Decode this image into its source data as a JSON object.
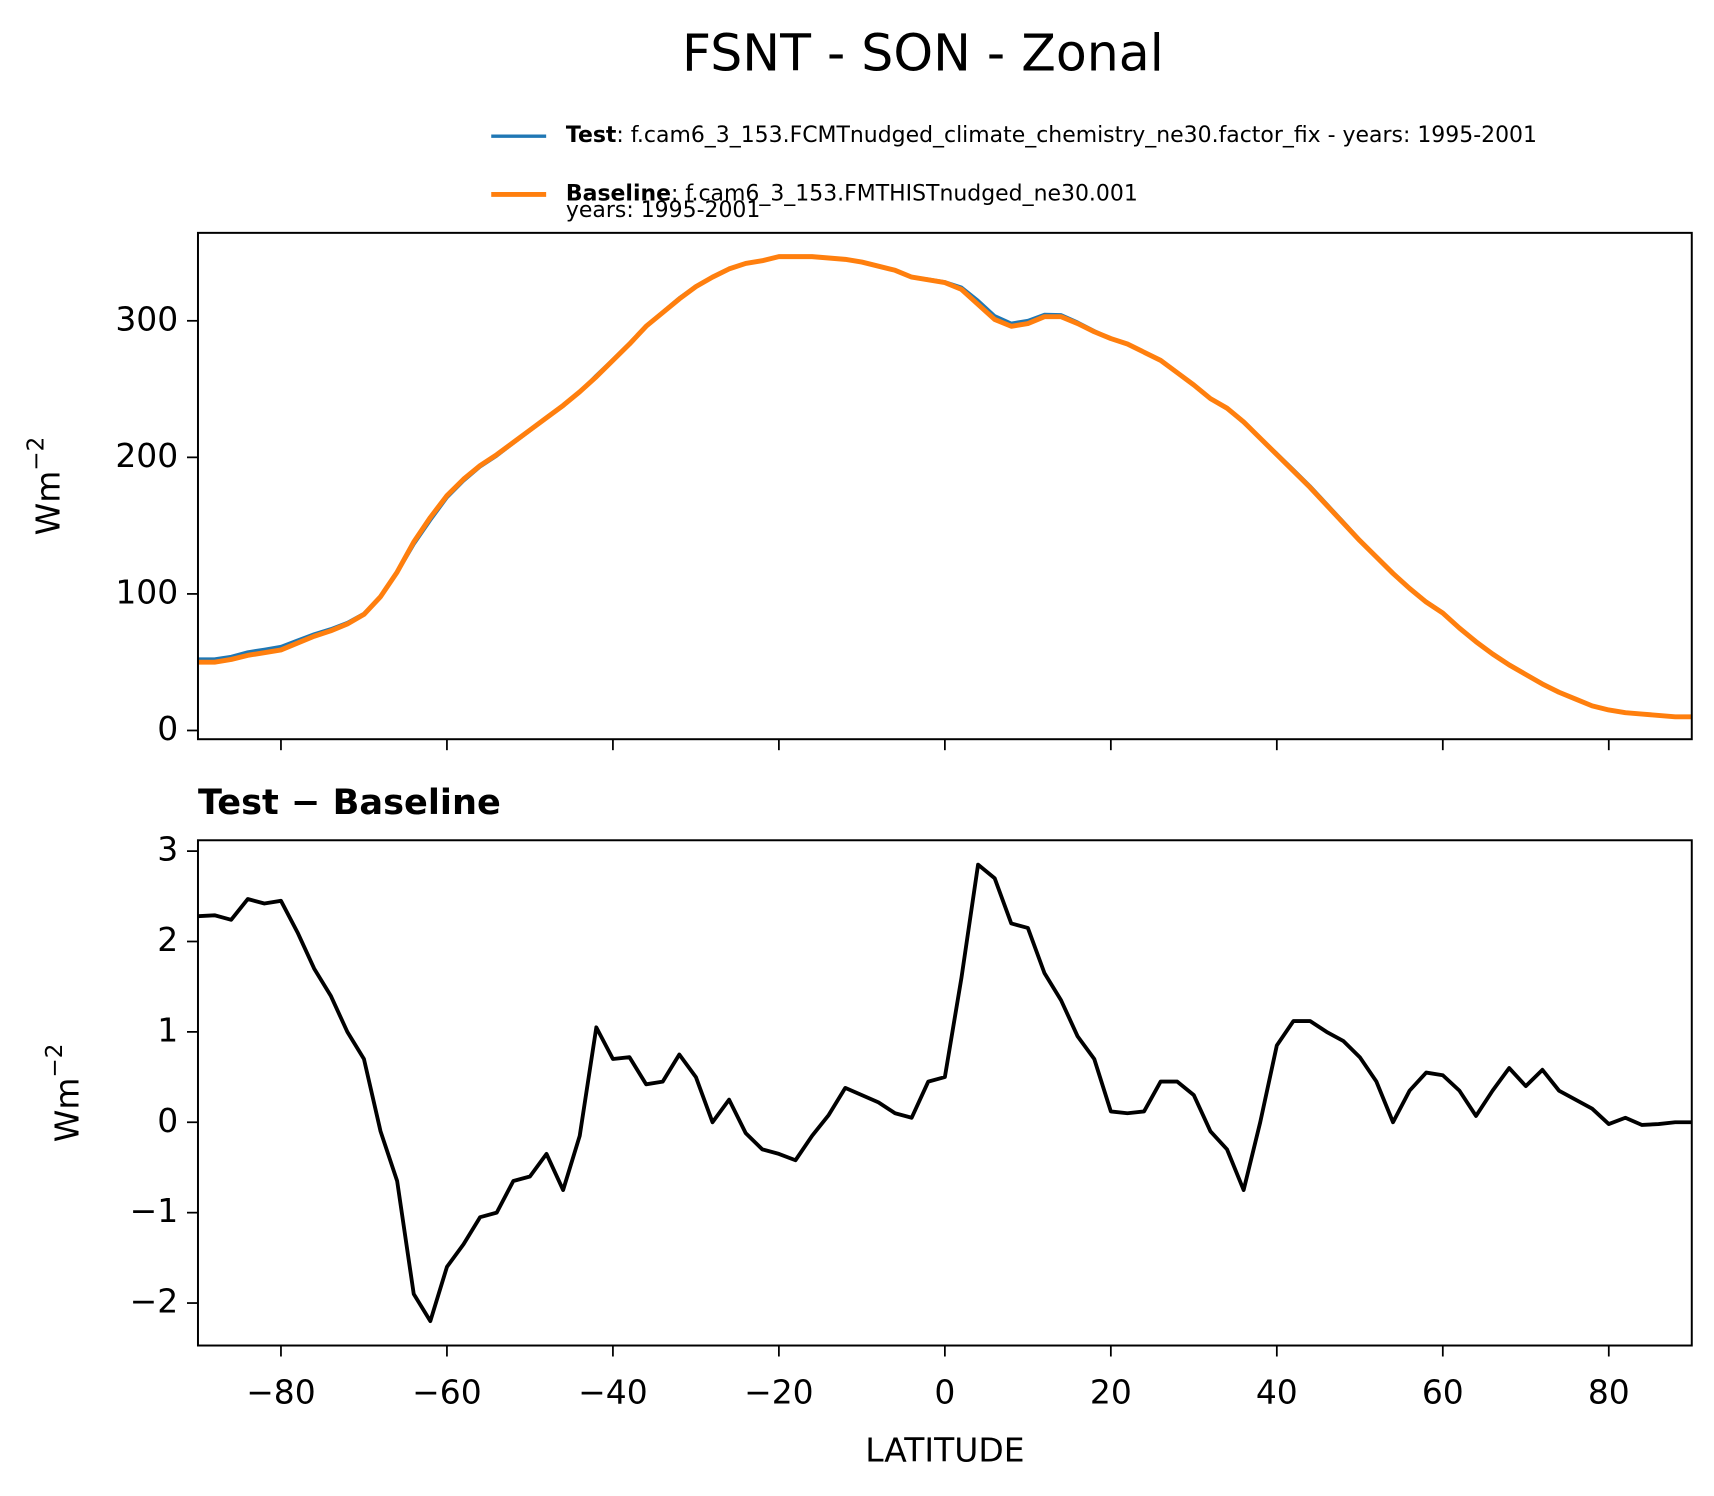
{
  "title": "FSNT - SON - Zonal",
  "chart_data": [
    {
      "type": "line",
      "ylabel": {
        "base": "Wm",
        "sup": "−2"
      },
      "xlim": [
        -90,
        90
      ],
      "ylim": [
        -6.4,
        364.4
      ],
      "xticks": [
        -80,
        -60,
        -40,
        -20,
        0,
        20,
        40,
        60,
        80
      ],
      "xtick_labels": false,
      "yticks": [
        0,
        100,
        200,
        300
      ],
      "x": [
        -90,
        -88,
        -86,
        -84,
        -82,
        -80,
        -78,
        -76,
        -74,
        -72,
        -70,
        -68,
        -66,
        -64,
        -62,
        -60,
        -58,
        -56,
        -54,
        -52,
        -50,
        -48,
        -46,
        -44,
        -42,
        -40,
        -38,
        -36,
        -34,
        -32,
        -30,
        -28,
        -26,
        -24,
        -22,
        -20,
        -18,
        -16,
        -14,
        -12,
        -10,
        -8,
        -6,
        -4,
        -2,
        0,
        2,
        4,
        6,
        8,
        10,
        12,
        14,
        16,
        18,
        20,
        22,
        24,
        26,
        28,
        30,
        32,
        34,
        36,
        38,
        40,
        42,
        44,
        46,
        48,
        50,
        52,
        54,
        56,
        58,
        60,
        62,
        64,
        66,
        68,
        70,
        72,
        74,
        76,
        78,
        80,
        82,
        84,
        86,
        88,
        90
      ],
      "series": [
        {
          "name": "Test",
          "description": [
            ": f.cam6_3_153.FCMTnudged_climate_chemistry_ne30.factor_fix - years: 1995-2001"
          ],
          "color": "#1f77b4",
          "values": [
            52.3,
            52.3,
            54.2,
            57.5,
            59.4,
            61.5,
            66.1,
            70.7,
            74.4,
            79,
            85.7,
            97.9,
            115.4,
            136.1,
            153.8,
            170.4,
            182.7,
            193,
            201,
            210.4,
            219.4,
            228.7,
            237.3,
            247.9,
            260.1,
            271.7,
            283.7,
            296.4,
            306.5,
            316.8,
            325.5,
            332,
            338.3,
            341.9,
            343.7,
            346.7,
            346.6,
            346.9,
            346.1,
            345.4,
            343.3,
            340.2,
            337.1,
            332.1,
            330.5,
            328.5,
            324.6,
            314.9,
            303.7,
            298.2,
            300.2,
            304.7,
            304.4,
            299,
            292.7,
            287.1,
            283.1,
            277.1,
            271.5,
            262.5,
            253.3,
            242.9,
            235.7,
            225.3,
            214,
            202.9,
            191.1,
            179.1,
            166,
            152.9,
            139.7,
            127.5,
            115,
            104.4,
            94.6,
            86.5,
            75.4,
            65.1,
            56.4,
            48.6,
            41.4,
            34.6,
            28.4,
            23.3,
            18.2,
            15,
            13.1,
            12,
            11,
            10,
            10
          ]
        },
        {
          "name": "Baseline",
          "description": [
            ": f.cam6_3_153.FMTHISTnudged_ne30.001",
            "years: 1995-2001"
          ],
          "color": "#ff7f0e",
          "values": [
            50,
            50,
            52,
            55,
            57,
            59,
            64,
            69,
            73,
            78,
            85,
            98,
            116,
            138,
            156,
            172,
            184,
            194,
            202,
            211,
            220,
            229,
            238,
            248,
            259,
            271,
            283,
            296,
            306,
            316,
            325,
            332,
            338,
            342,
            344,
            347,
            347,
            347,
            346,
            345,
            343,
            340,
            337,
            332,
            330,
            328,
            323,
            312,
            301,
            296,
            298,
            303,
            303,
            298,
            292,
            287,
            283,
            277,
            271,
            262,
            253,
            243,
            236,
            226,
            214,
            202,
            190,
            178,
            165,
            152,
            139,
            127,
            115,
            104,
            94,
            86,
            75,
            65,
            56,
            48,
            41,
            34,
            28,
            23,
            18,
            15,
            13,
            12,
            11,
            10,
            10
          ]
        }
      ]
    },
    {
      "type": "line",
      "subtitle": "Test − Baseline",
      "ylabel": {
        "base": "Wm",
        "sup": "−2"
      },
      "xlabel": "LATITUDE",
      "xlim": [
        -90,
        90
      ],
      "ylim": [
        -2.47,
        3.12
      ],
      "xticks": [
        {
          "value": -80,
          "label": "−80"
        },
        {
          "value": -60,
          "label": "−60"
        },
        {
          "value": -40,
          "label": "−40"
        },
        {
          "value": -20,
          "label": "−20"
        },
        0,
        20,
        40,
        60,
        80
      ],
      "yticks": [
        {
          "value": -2,
          "label": "−2"
        },
        {
          "value": -1,
          "label": "−1"
        },
        0,
        1,
        2,
        3
      ],
      "x": [
        -90,
        -88,
        -86,
        -84,
        -82,
        -80,
        -78,
        -76,
        -74,
        -72,
        -70,
        -68,
        -66,
        -64,
        -62,
        -60,
        -58,
        -56,
        -54,
        -52,
        -50,
        -48,
        -46,
        -44,
        -42,
        -40,
        -38,
        -36,
        -34,
        -32,
        -30,
        -28,
        -26,
        -24,
        -22,
        -20,
        -18,
        -16,
        -14,
        -12,
        -10,
        -8,
        -6,
        -4,
        -2,
        0,
        2,
        4,
        6,
        8,
        10,
        12,
        14,
        16,
        18,
        20,
        22,
        24,
        26,
        28,
        30,
        32,
        34,
        36,
        38,
        40,
        42,
        44,
        46,
        48,
        50,
        52,
        54,
        56,
        58,
        60,
        62,
        64,
        66,
        68,
        70,
        72,
        74,
        76,
        78,
        80,
        82,
        84,
        86,
        88,
        90
      ],
      "series": [
        {
          "color": "#000000",
          "values": [
            2.28,
            2.29,
            2.24,
            2.47,
            2.42,
            2.45,
            2.1,
            1.7,
            1.4,
            1.0,
            0.7,
            -0.1,
            -0.65,
            -1.9,
            -2.2,
            -1.6,
            -1.35,
            -1.05,
            -1.0,
            -0.65,
            -0.6,
            -0.35,
            -0.75,
            -0.15,
            1.05,
            0.7,
            0.72,
            0.42,
            0.45,
            0.75,
            0.5,
            0.0,
            0.25,
            -0.12,
            -0.3,
            -0.35,
            -0.42,
            -0.15,
            0.08,
            0.38,
            0.3,
            0.22,
            0.1,
            0.05,
            0.45,
            0.5,
            1.6,
            2.85,
            2.7,
            2.2,
            2.15,
            1.65,
            1.35,
            0.95,
            0.7,
            0.12,
            0.1,
            0.12,
            0.45,
            0.45,
            0.3,
            -0.1,
            -0.3,
            -0.75,
            0.0,
            0.85,
            1.12,
            1.12,
            1.0,
            0.9,
            0.72,
            0.45,
            0.0,
            0.35,
            0.55,
            0.52,
            0.35,
            0.07,
            0.35,
            0.6,
            0.4,
            0.58,
            0.35,
            0.25,
            0.15,
            -0.02,
            0.05,
            -0.03,
            -0.02,
            0.0,
            0.0
          ]
        }
      ]
    }
  ]
}
